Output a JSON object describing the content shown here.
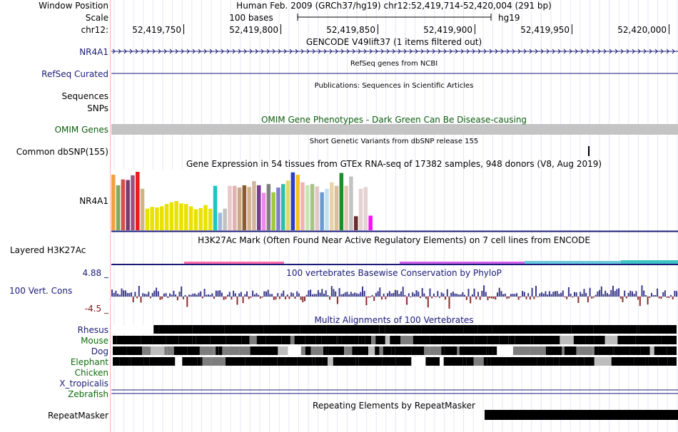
{
  "header": {
    "window_position_label": "Window Position",
    "scale_label": "Scale",
    "chrom_label": "chr12:",
    "assembly_line": "Human Feb. 2009 (GRCh37/hg19)   chr12:52,419,714-52,420,004 (291 bp)",
    "scale_text": "100 bases",
    "scale_db": "hg19",
    "ticks": [
      "52,419,750",
      "52,419,800",
      "52,419,850",
      "52,419,900",
      "52,419,950",
      "52,420,000"
    ]
  },
  "tracks": {
    "gencode": {
      "title": "GENCODE V49lift37 (1 items filtered out)",
      "label": "NR4A1"
    },
    "refseq": {
      "title": "RefSeq genes from NCBI",
      "label": "RefSeq Curated"
    },
    "publications": {
      "title": "Publications: Sequences in Scientific Articles",
      "label1": "Sequences",
      "label2": "SNPs"
    },
    "omim": {
      "title": "OMIM Gene Phenotypes - Dark Green Can Be Disease-causing",
      "label": "OMIM Genes",
      "bar_color": "#c4c4c4"
    },
    "dbsnp": {
      "title": "Short Genetic Variants from dbSNP release 155",
      "label": "Common dbSNP(155)"
    },
    "gtex": {
      "title": "Gene Expression in 54 tissues from GTEx RNA-seq of 17382 samples, 948 donors (V8, Aug 2019)",
      "label": "NR4A1",
      "values": [
        0.95,
        0.77,
        0.87,
        0.86,
        0.94,
        1.0,
        0.71,
        0.37,
        0.4,
        0.39,
        0.41,
        0.45,
        0.48,
        0.5,
        0.46,
        0.45,
        0.41,
        0.36,
        0.38,
        0.43,
        0.37,
        0.76,
        0.3,
        0.37,
        0.76,
        0.76,
        0.73,
        0.77,
        0.74,
        0.84,
        0.77,
        0.64,
        0.79,
        0.65,
        0.73,
        0.79,
        0.85,
        0.99,
        0.95,
        0.82,
        0.77,
        0.79,
        0.75,
        0.65,
        0.71,
        0.82,
        0.76,
        0.98,
        0.76,
        0.92,
        0.24,
        0.71,
        0.74,
        0.25
      ],
      "colors": [
        "#f4a03c",
        "#7fab5c",
        "#d5504a",
        "#7a3a6e",
        "#a14f7e",
        "#ea1c1c",
        "#d2b48c",
        "#e9e100",
        "#e9e100",
        "#e9e100",
        "#e9e100",
        "#e9e100",
        "#e9e100",
        "#e9e100",
        "#e9e100",
        "#e9e100",
        "#e9e100",
        "#e9e100",
        "#e9e100",
        "#e9e100",
        "#e9e100",
        "#1fc4c4",
        "#9fb8dc",
        "#c2c2c2",
        "#e8c8c8",
        "#e2b1b1",
        "#c9a887",
        "#8c5b34",
        "#d2b48c",
        "#d4b5a0",
        "#7b3a94",
        "#ee88ee",
        "#7f7f7f",
        "#a0c83c",
        "#7d7dd2",
        "#2ac1a4",
        "#e8d56a",
        "#2d3fc7",
        "#f8c21c",
        "#f1b2b2",
        "#c4e9b0",
        "#a8c28c",
        "#e3c7c7",
        "#6c9bd4",
        "#c3e0f4",
        "#e9d3a8",
        "#d9c099",
        "#1c8c2c",
        "#e4c7b6",
        "#c3c3c3",
        "#6d2c2c",
        "#e5d2d2",
        "#e5d2d2",
        "#f810f8"
      ]
    },
    "h3k27ac": {
      "title": "H3K27Ac Mark (Often Found Near Active Regulatory Elements) on 7 cell lines from ENCODE",
      "label": "Layered H3K27Ac"
    },
    "conservation": {
      "title": "100 vertebrates Basewise Conservation by PhyloP",
      "label": "100 Vert. Cons",
      "max_label": "4.88 _",
      "min_label": "-4.5 _"
    },
    "multiz": {
      "title": "Multiz Alignments of 100 Vertebrates",
      "species": [
        {
          "name": "Rhesus",
          "color": "#1a1a78"
        },
        {
          "name": "Mouse",
          "color": "#0c6c0c"
        },
        {
          "name": "Dog",
          "color": "#1a1a78"
        },
        {
          "name": "Elephant",
          "color": "#0c6c0c"
        },
        {
          "name": "Chicken",
          "color": "#0c6c0c"
        },
        {
          "name": "X_tropicalis",
          "color": "#1a1a78"
        },
        {
          "name": "Zebrafish",
          "color": "#0c6c0c"
        }
      ]
    },
    "repeatmasker": {
      "title": "Repeating Elements by RepeatMasker",
      "label": "RepeatMasker"
    }
  },
  "colors": {
    "navy": "#1a1a78",
    "green": "#0c5c0c",
    "grid": "#e6e6f8",
    "side_line": "#ffb4b4"
  }
}
